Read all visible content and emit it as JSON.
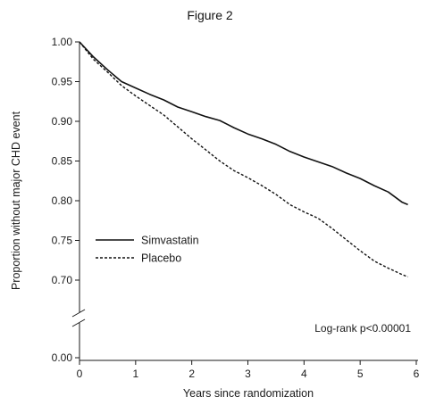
{
  "chart_data": {
    "type": "line",
    "title": "Figure 2",
    "xlabel": "Years since randomization",
    "ylabel": "Proportion without major CHD event",
    "xlim": [
      0,
      6
    ],
    "ylim": [
      0.65,
      1.0
    ],
    "x_ticks": [
      "0",
      "1",
      "2",
      "3",
      "4",
      "5",
      "6"
    ],
    "y_ticks": [
      "0.00",
      "0.70",
      "0.75",
      "0.80",
      "0.85",
      "0.90",
      "0.95",
      "1.00"
    ],
    "y_axis_break": true,
    "grid": false,
    "legend_position": "center-left",
    "annotation": "Log-rank p<0.00001",
    "series": [
      {
        "name": "Simvastatin",
        "line_style": "solid",
        "x": [
          0,
          0.25,
          0.5,
          0.75,
          1.0,
          1.25,
          1.5,
          1.75,
          2.0,
          2.25,
          2.5,
          2.75,
          3.0,
          3.25,
          3.5,
          3.75,
          4.0,
          4.25,
          4.5,
          4.75,
          5.0,
          5.25,
          5.5,
          5.75,
          5.85
        ],
        "values": [
          1.0,
          0.981,
          0.965,
          0.95,
          0.942,
          0.934,
          0.927,
          0.918,
          0.912,
          0.906,
          0.901,
          0.892,
          0.884,
          0.878,
          0.871,
          0.862,
          0.855,
          0.849,
          0.843,
          0.835,
          0.828,
          0.819,
          0.811,
          0.798,
          0.795
        ]
      },
      {
        "name": "Placebo",
        "line_style": "dashed",
        "x": [
          0,
          0.25,
          0.5,
          0.75,
          1.0,
          1.25,
          1.5,
          1.75,
          2.0,
          2.25,
          2.5,
          2.75,
          3.0,
          3.25,
          3.5,
          3.75,
          4.0,
          4.25,
          4.5,
          4.75,
          5.0,
          5.25,
          5.5,
          5.75,
          5.85
        ],
        "values": [
          1.0,
          0.978,
          0.962,
          0.945,
          0.932,
          0.92,
          0.908,
          0.893,
          0.878,
          0.864,
          0.85,
          0.838,
          0.829,
          0.819,
          0.808,
          0.795,
          0.786,
          0.778,
          0.765,
          0.751,
          0.737,
          0.724,
          0.715,
          0.707,
          0.704
        ]
      }
    ]
  }
}
